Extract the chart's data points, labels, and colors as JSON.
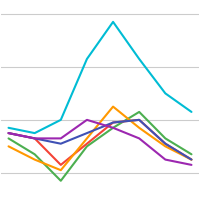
{
  "x": [
    0,
    1,
    2,
    3,
    4,
    5,
    6,
    7
  ],
  "series": {
    "cyan": [
      6.2,
      6.0,
      6.5,
      8.8,
      10.2,
      8.8,
      7.5,
      6.8
    ],
    "orange": [
      5.5,
      5.0,
      4.6,
      5.8,
      7.0,
      6.2,
      5.5,
      5.0
    ],
    "green": [
      5.8,
      5.2,
      4.2,
      5.5,
      6.2,
      6.8,
      5.8,
      5.2
    ],
    "red": [
      6.0,
      5.8,
      4.8,
      5.6,
      6.4,
      6.5,
      5.6,
      5.0
    ],
    "purple": [
      6.0,
      5.8,
      5.8,
      6.5,
      6.2,
      5.8,
      5.0,
      4.8
    ],
    "blue": [
      6.0,
      5.8,
      5.6,
      6.0,
      6.4,
      6.5,
      5.6,
      5.0
    ]
  },
  "colors": {
    "cyan": "#00bcd4",
    "orange": "#ff9800",
    "green": "#4caf50",
    "red": "#f44336",
    "purple": "#9c27b0",
    "blue": "#3f51b5"
  },
  "linewidth": 1.5,
  "background_color": "#ffffff",
  "ylim": [
    3.5,
    11.0
  ],
  "xlim": [
    -0.3,
    7.3
  ],
  "grid_color": "#cccccc",
  "grid_linewidth": 0.8,
  "grid_yticks": [
    4.5,
    6.5,
    8.5,
    10.5
  ]
}
